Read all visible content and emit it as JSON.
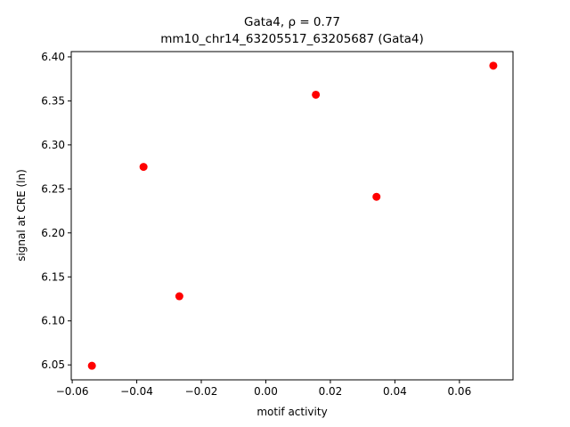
{
  "chart_data": {
    "type": "scatter",
    "title": "Gata4, ρ = 0.77",
    "subtitle": "mm10_chr14_63205517_63205687 (Gata4)",
    "x_label": "motif activity",
    "y_label": "signal at CRE (ln)",
    "color": "#ff0000",
    "x": [
      -0.0539,
      -0.0379,
      -0.0268,
      0.0155,
      0.0343,
      0.0705
    ],
    "values": [
      6.049,
      6.275,
      6.128,
      6.357,
      6.241,
      6.39
    ],
    "xlim": [
      -0.0603,
      0.0766
    ],
    "ylim": [
      6.033,
      6.406
    ],
    "xticks": [
      {
        "value": -0.06,
        "label": "−0.06"
      },
      {
        "value": -0.04,
        "label": "−0.04"
      },
      {
        "value": -0.02,
        "label": "−0.02"
      },
      {
        "value": 0,
        "label": "0.00"
      },
      0.02,
      0.04,
      0.06
    ],
    "yticks": [
      6.05,
      {
        "value": 6.1,
        "label": "6.10"
      },
      6.15,
      {
        "value": 6.2,
        "label": "6.20"
      },
      6.25,
      {
        "value": 6.3,
        "label": "6.30"
      },
      6.35,
      {
        "value": 6.4,
        "label": "6.40"
      }
    ]
  }
}
